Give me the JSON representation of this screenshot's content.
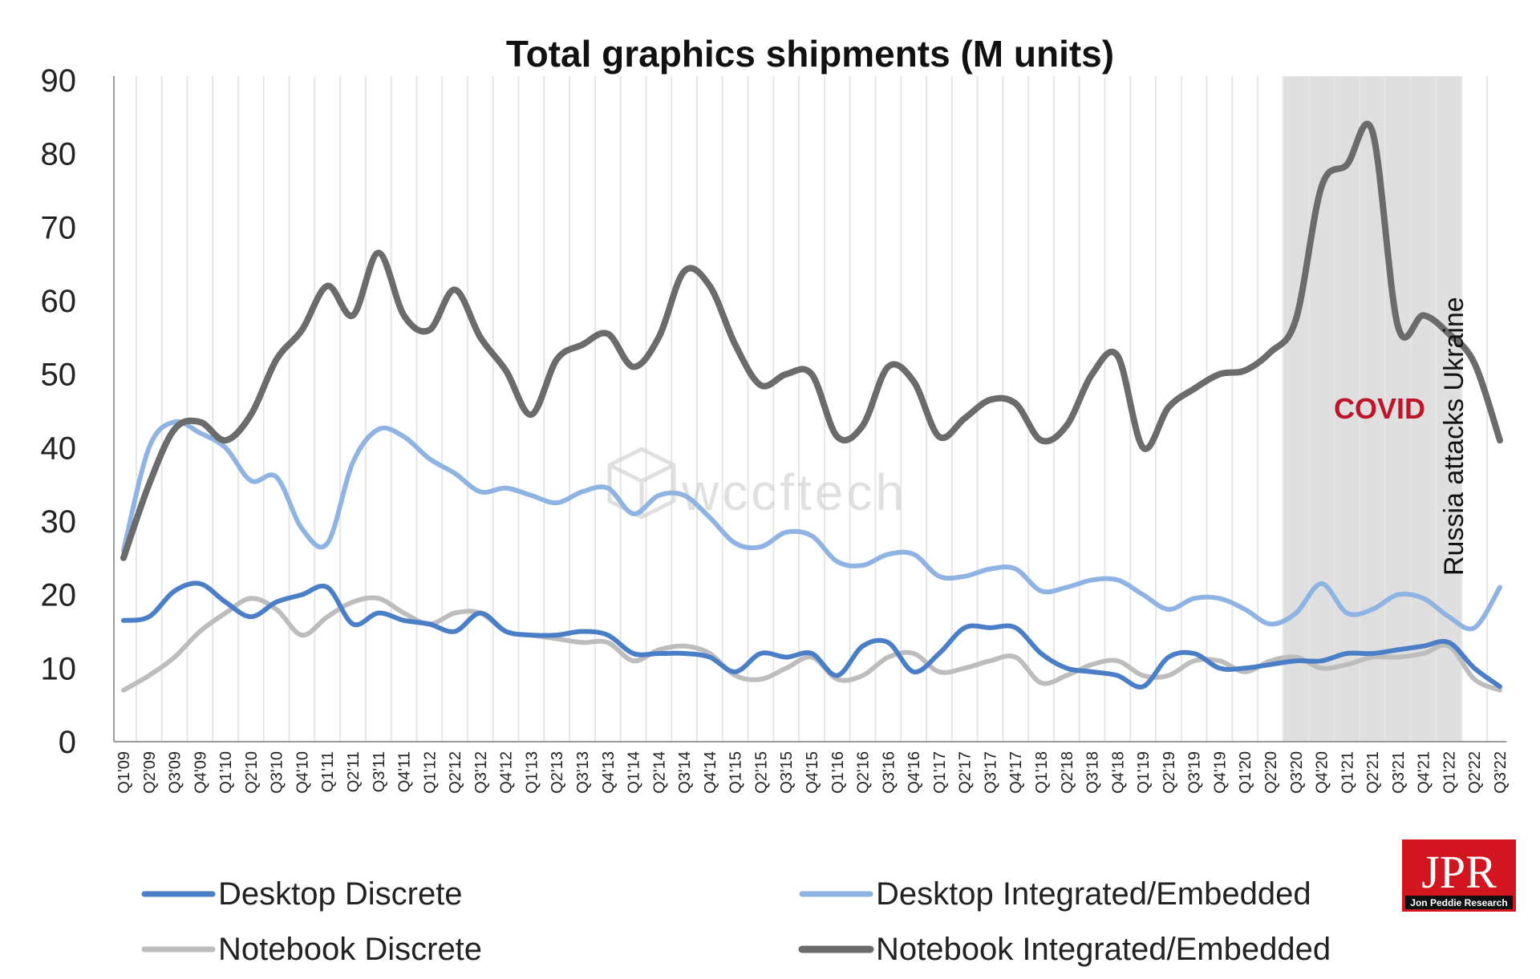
{
  "chart_data": {
    "type": "line",
    "title": "Total graphics shipments (M units)",
    "xlabel": "",
    "ylabel": "",
    "ylim": [
      0,
      90
    ],
    "yticks": [
      0,
      10,
      20,
      30,
      40,
      50,
      60,
      70,
      80,
      90
    ],
    "grid": "vertical",
    "legend_position": "bottom",
    "categories": [
      "Q1'09",
      "Q2'09",
      "Q3'09",
      "Q4'09",
      "Q1'10",
      "Q2'10",
      "Q3'10",
      "Q4'10",
      "Q1'11",
      "Q2'11",
      "Q3'11",
      "Q4'11",
      "Q1'12",
      "Q2'12",
      "Q3'12",
      "Q4'12",
      "Q1'13",
      "Q2'13",
      "Q3'13",
      "Q4'13",
      "Q1'14",
      "Q2'14",
      "Q3'14",
      "Q4'14",
      "Q1'15",
      "Q2'15",
      "Q3'15",
      "Q4'15",
      "Q1'16",
      "Q2'16",
      "Q3'16",
      "Q4'16",
      "Q1'17",
      "Q2'17",
      "Q3'17",
      "Q4'17",
      "Q1'18",
      "Q2'18",
      "Q3'18",
      "Q4'18",
      "Q1'19",
      "Q2'19",
      "Q3'19",
      "Q4'19",
      "Q1'20",
      "Q2'20",
      "Q3'20",
      "Q4'20",
      "Q1'21",
      "Q2'21",
      "Q3'21",
      "Q4'21",
      "Q1'22",
      "Q2'22",
      "Q3'22"
    ],
    "series": [
      {
        "name": "Desktop Discrete",
        "color": "#4a7ec7",
        "width": 6,
        "values": [
          16.5,
          17,
          20.5,
          21.5,
          19,
          17,
          19,
          20,
          21,
          16,
          17.5,
          16.5,
          16,
          15,
          17.5,
          15,
          14.5,
          14.5,
          15,
          14.5,
          12,
          12,
          12,
          11.5,
          9.5,
          12,
          11.5,
          12,
          9,
          13,
          13.5,
          9.5,
          12,
          15.5,
          15.5,
          15.5,
          12,
          10,
          9.5,
          9,
          7.5,
          11.5,
          12,
          10,
          10,
          10.5,
          11,
          11,
          12,
          12,
          12.5,
          13,
          13.5,
          10,
          7.5
        ]
      },
      {
        "name": "Desktop Integrated/Embedded",
        "color": "#8fb4e3",
        "width": 6,
        "values": [
          26,
          40,
          43.5,
          42,
          40,
          35.5,
          36,
          29,
          27,
          38,
          42.5,
          41.5,
          38.5,
          36.5,
          34,
          34.5,
          33.5,
          32.5,
          34,
          34.5,
          31,
          33.5,
          33.5,
          30.5,
          27,
          26.5,
          28.5,
          28,
          24.5,
          24,
          25.5,
          25.5,
          22.5,
          22.5,
          23.5,
          23.5,
          20.5,
          21,
          22,
          22,
          20,
          18,
          19.5,
          19.5,
          18,
          16,
          17.5,
          21.5,
          17.5,
          18,
          20,
          19.5,
          17,
          15.5,
          21
        ]
      },
      {
        "name": "Notebook Discrete",
        "color": "#bdbdbd",
        "width": 6,
        "values": [
          7,
          9,
          11.5,
          15,
          17.5,
          19.5,
          18,
          14.5,
          17,
          19,
          19.5,
          17.5,
          16,
          17.5,
          17.5,
          15,
          14.5,
          14,
          13.5,
          13.5,
          11,
          12.5,
          13,
          12,
          9,
          8.5,
          10,
          11.5,
          8.5,
          9,
          11.5,
          12,
          9.5,
          10,
          11,
          11.5,
          8,
          9,
          10.5,
          11,
          9,
          9,
          11,
          11,
          9.5,
          11,
          11.5,
          10,
          10.5,
          11.5,
          11.5,
          12,
          13,
          8.5,
          7
        ]
      },
      {
        "name": "Notebook Integrated/Embedded",
        "color": "#6b6b6b",
        "width": 8,
        "values": [
          25,
          35,
          42.5,
          43.5,
          41,
          44.5,
          52,
          56,
          62,
          58,
          66.5,
          58,
          56,
          61.5,
          55,
          50.5,
          44.5,
          52,
          54,
          55.5,
          51,
          55,
          64,
          62,
          54,
          48.5,
          50,
          50,
          41.5,
          43,
          51,
          49,
          41.5,
          44,
          46.5,
          46,
          41,
          43,
          50,
          52.5,
          40,
          45.5,
          48,
          50,
          50.5,
          53,
          57.5,
          75.5,
          78.5,
          83,
          56.5,
          58,
          55.5,
          51.5,
          41
        ]
      }
    ],
    "annotations": {
      "covid_label": "COVID",
      "covid_shade_range": [
        "Q3'20",
        "Q1'22"
      ],
      "russia_label": "Russia attacks  Ukraine",
      "watermark": "wccftech",
      "logo_text": "JPR",
      "logo_subtext": "Jon Peddie Research"
    }
  }
}
